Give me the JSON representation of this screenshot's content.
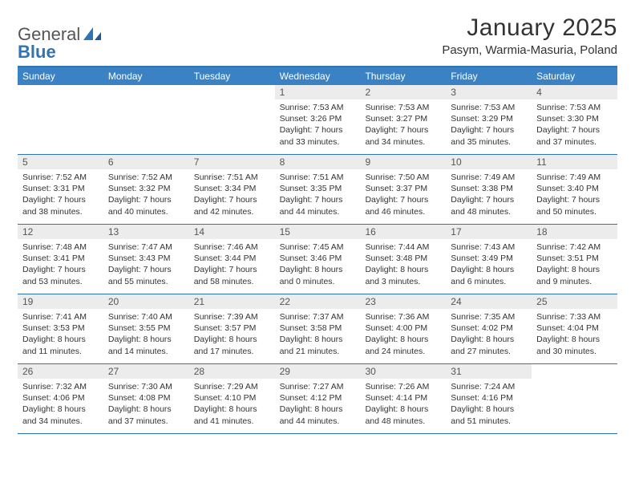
{
  "logo": {
    "word1": "General",
    "word2": "Blue"
  },
  "title": "January 2025",
  "location": "Pasym, Warmia-Masuria, Poland",
  "day_names": [
    "Sunday",
    "Monday",
    "Tuesday",
    "Wednesday",
    "Thursday",
    "Friday",
    "Saturday"
  ],
  "colors": {
    "header_bar": "#3b82c4",
    "accent": "#2f74b5",
    "cell_num_bg": "#ececec",
    "text": "#333333",
    "bg": "#ffffff"
  },
  "weeks": [
    [
      {
        "empty": true
      },
      {
        "empty": true
      },
      {
        "empty": true
      },
      {
        "num": "1",
        "sunrise": "Sunrise: 7:53 AM",
        "sunset": "Sunset: 3:26 PM",
        "day1": "Daylight: 7 hours",
        "day2": "and 33 minutes."
      },
      {
        "num": "2",
        "sunrise": "Sunrise: 7:53 AM",
        "sunset": "Sunset: 3:27 PM",
        "day1": "Daylight: 7 hours",
        "day2": "and 34 minutes."
      },
      {
        "num": "3",
        "sunrise": "Sunrise: 7:53 AM",
        "sunset": "Sunset: 3:29 PM",
        "day1": "Daylight: 7 hours",
        "day2": "and 35 minutes."
      },
      {
        "num": "4",
        "sunrise": "Sunrise: 7:53 AM",
        "sunset": "Sunset: 3:30 PM",
        "day1": "Daylight: 7 hours",
        "day2": "and 37 minutes."
      }
    ],
    [
      {
        "num": "5",
        "sunrise": "Sunrise: 7:52 AM",
        "sunset": "Sunset: 3:31 PM",
        "day1": "Daylight: 7 hours",
        "day2": "and 38 minutes."
      },
      {
        "num": "6",
        "sunrise": "Sunrise: 7:52 AM",
        "sunset": "Sunset: 3:32 PM",
        "day1": "Daylight: 7 hours",
        "day2": "and 40 minutes."
      },
      {
        "num": "7",
        "sunrise": "Sunrise: 7:51 AM",
        "sunset": "Sunset: 3:34 PM",
        "day1": "Daylight: 7 hours",
        "day2": "and 42 minutes."
      },
      {
        "num": "8",
        "sunrise": "Sunrise: 7:51 AM",
        "sunset": "Sunset: 3:35 PM",
        "day1": "Daylight: 7 hours",
        "day2": "and 44 minutes."
      },
      {
        "num": "9",
        "sunrise": "Sunrise: 7:50 AM",
        "sunset": "Sunset: 3:37 PM",
        "day1": "Daylight: 7 hours",
        "day2": "and 46 minutes."
      },
      {
        "num": "10",
        "sunrise": "Sunrise: 7:49 AM",
        "sunset": "Sunset: 3:38 PM",
        "day1": "Daylight: 7 hours",
        "day2": "and 48 minutes."
      },
      {
        "num": "11",
        "sunrise": "Sunrise: 7:49 AM",
        "sunset": "Sunset: 3:40 PM",
        "day1": "Daylight: 7 hours",
        "day2": "and 50 minutes."
      }
    ],
    [
      {
        "num": "12",
        "sunrise": "Sunrise: 7:48 AM",
        "sunset": "Sunset: 3:41 PM",
        "day1": "Daylight: 7 hours",
        "day2": "and 53 minutes."
      },
      {
        "num": "13",
        "sunrise": "Sunrise: 7:47 AM",
        "sunset": "Sunset: 3:43 PM",
        "day1": "Daylight: 7 hours",
        "day2": "and 55 minutes."
      },
      {
        "num": "14",
        "sunrise": "Sunrise: 7:46 AM",
        "sunset": "Sunset: 3:44 PM",
        "day1": "Daylight: 7 hours",
        "day2": "and 58 minutes."
      },
      {
        "num": "15",
        "sunrise": "Sunrise: 7:45 AM",
        "sunset": "Sunset: 3:46 PM",
        "day1": "Daylight: 8 hours",
        "day2": "and 0 minutes."
      },
      {
        "num": "16",
        "sunrise": "Sunrise: 7:44 AM",
        "sunset": "Sunset: 3:48 PM",
        "day1": "Daylight: 8 hours",
        "day2": "and 3 minutes."
      },
      {
        "num": "17",
        "sunrise": "Sunrise: 7:43 AM",
        "sunset": "Sunset: 3:49 PM",
        "day1": "Daylight: 8 hours",
        "day2": "and 6 minutes."
      },
      {
        "num": "18",
        "sunrise": "Sunrise: 7:42 AM",
        "sunset": "Sunset: 3:51 PM",
        "day1": "Daylight: 8 hours",
        "day2": "and 9 minutes."
      }
    ],
    [
      {
        "num": "19",
        "sunrise": "Sunrise: 7:41 AM",
        "sunset": "Sunset: 3:53 PM",
        "day1": "Daylight: 8 hours",
        "day2": "and 11 minutes."
      },
      {
        "num": "20",
        "sunrise": "Sunrise: 7:40 AM",
        "sunset": "Sunset: 3:55 PM",
        "day1": "Daylight: 8 hours",
        "day2": "and 14 minutes."
      },
      {
        "num": "21",
        "sunrise": "Sunrise: 7:39 AM",
        "sunset": "Sunset: 3:57 PM",
        "day1": "Daylight: 8 hours",
        "day2": "and 17 minutes."
      },
      {
        "num": "22",
        "sunrise": "Sunrise: 7:37 AM",
        "sunset": "Sunset: 3:58 PM",
        "day1": "Daylight: 8 hours",
        "day2": "and 21 minutes."
      },
      {
        "num": "23",
        "sunrise": "Sunrise: 7:36 AM",
        "sunset": "Sunset: 4:00 PM",
        "day1": "Daylight: 8 hours",
        "day2": "and 24 minutes."
      },
      {
        "num": "24",
        "sunrise": "Sunrise: 7:35 AM",
        "sunset": "Sunset: 4:02 PM",
        "day1": "Daylight: 8 hours",
        "day2": "and 27 minutes."
      },
      {
        "num": "25",
        "sunrise": "Sunrise: 7:33 AM",
        "sunset": "Sunset: 4:04 PM",
        "day1": "Daylight: 8 hours",
        "day2": "and 30 minutes."
      }
    ],
    [
      {
        "num": "26",
        "sunrise": "Sunrise: 7:32 AM",
        "sunset": "Sunset: 4:06 PM",
        "day1": "Daylight: 8 hours",
        "day2": "and 34 minutes."
      },
      {
        "num": "27",
        "sunrise": "Sunrise: 7:30 AM",
        "sunset": "Sunset: 4:08 PM",
        "day1": "Daylight: 8 hours",
        "day2": "and 37 minutes."
      },
      {
        "num": "28",
        "sunrise": "Sunrise: 7:29 AM",
        "sunset": "Sunset: 4:10 PM",
        "day1": "Daylight: 8 hours",
        "day2": "and 41 minutes."
      },
      {
        "num": "29",
        "sunrise": "Sunrise: 7:27 AM",
        "sunset": "Sunset: 4:12 PM",
        "day1": "Daylight: 8 hours",
        "day2": "and 44 minutes."
      },
      {
        "num": "30",
        "sunrise": "Sunrise: 7:26 AM",
        "sunset": "Sunset: 4:14 PM",
        "day1": "Daylight: 8 hours",
        "day2": "and 48 minutes."
      },
      {
        "num": "31",
        "sunrise": "Sunrise: 7:24 AM",
        "sunset": "Sunset: 4:16 PM",
        "day1": "Daylight: 8 hours",
        "day2": "and 51 minutes."
      },
      {
        "empty": true
      }
    ]
  ]
}
